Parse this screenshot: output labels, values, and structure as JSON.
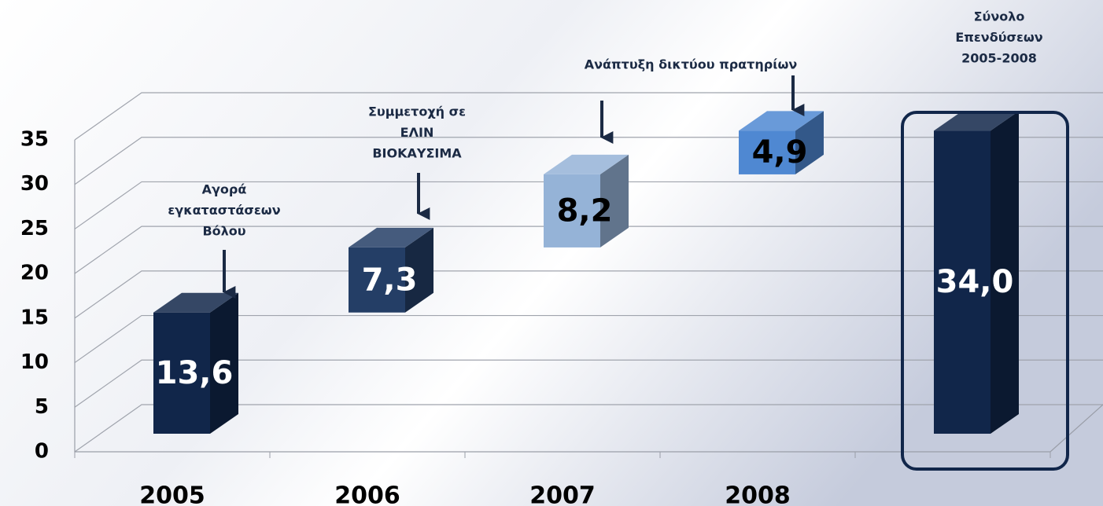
{
  "chart_data": {
    "type": "waterfall",
    "categories": [
      "2005",
      "2006",
      "2007",
      "2008",
      null
    ],
    "values": [
      13.6,
      7.3,
      8.2,
      4.9,
      34.0
    ],
    "value_labels": [
      "13,6",
      "7,3",
      "8,2",
      "4,9",
      "34,0"
    ],
    "is_total": [
      false,
      false,
      false,
      false,
      true
    ],
    "colors": [
      "#11264a",
      "#243e66",
      "#95b3d7",
      "#4f88d2",
      "#11264a"
    ],
    "label_colors": [
      "#ffffff",
      "#ffffff",
      "#000000",
      "#000000",
      "#ffffff"
    ],
    "ylim": [
      0,
      35
    ],
    "yticks": [
      0,
      5,
      10,
      15,
      20,
      25,
      30,
      35
    ],
    "grid": true,
    "annotations": [
      {
        "lines": [
          "Αγορά",
          "εγκαταστάσεων",
          "Βόλου"
        ]
      },
      {
        "lines": [
          "Συμμετοχή σε",
          "ΕΛΙΝ",
          "ΒΙΟΚΑΥΣΙΜΑ"
        ]
      },
      {
        "lines": [
          "Ανάπτυξη δικτύου πρατηρίων"
        ]
      },
      {
        "lines": [
          "Σύνολο",
          "Επενδύσεων",
          "2005-2008"
        ]
      }
    ]
  }
}
